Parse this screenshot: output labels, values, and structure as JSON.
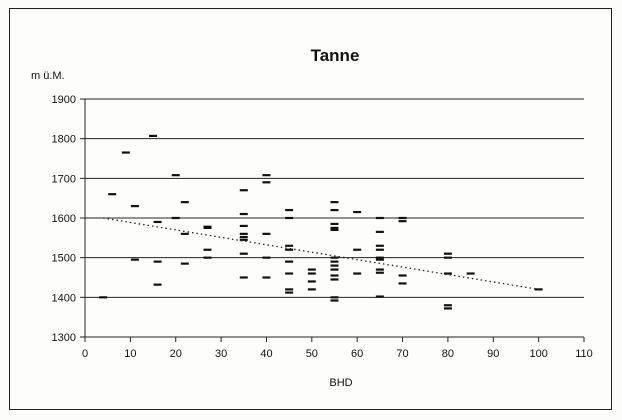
{
  "chart_data": {
    "type": "scatter",
    "title": "Tanne",
    "ylabel": "m ü.M.",
    "xlabel": "BHD",
    "xlim": [
      0,
      110
    ],
    "ylim": [
      1300,
      1900
    ],
    "xticks": [
      "0",
      "10",
      "20",
      "30",
      "40",
      "50",
      "60",
      "70",
      "80",
      "90",
      "100",
      "110"
    ],
    "yticks": [
      "1300",
      "1400",
      "1500",
      "1600",
      "1700",
      "1800",
      "1900"
    ],
    "grid": "horizontal",
    "marker": "dash",
    "points": [
      [
        4,
        1400
      ],
      [
        6,
        1660
      ],
      [
        9,
        1765
      ],
      [
        11,
        1630
      ],
      [
        11,
        1495
      ],
      [
        15,
        1807
      ],
      [
        16,
        1590
      ],
      [
        16,
        1490
      ],
      [
        16,
        1432
      ],
      [
        20,
        1708
      ],
      [
        20,
        1600
      ],
      [
        22,
        1640
      ],
      [
        22,
        1560
      ],
      [
        22,
        1485
      ],
      [
        27,
        1578
      ],
      [
        27,
        1575
      ],
      [
        27,
        1520
      ],
      [
        27,
        1500
      ],
      [
        35,
        1670
      ],
      [
        35,
        1610
      ],
      [
        35,
        1580
      ],
      [
        35,
        1560
      ],
      [
        35,
        1552
      ],
      [
        35,
        1545
      ],
      [
        35,
        1510
      ],
      [
        35,
        1450
      ],
      [
        40,
        1708
      ],
      [
        40,
        1690
      ],
      [
        40,
        1560
      ],
      [
        40,
        1500
      ],
      [
        40,
        1450
      ],
      [
        45,
        1620
      ],
      [
        45,
        1600
      ],
      [
        45,
        1530
      ],
      [
        45,
        1520
      ],
      [
        45,
        1490
      ],
      [
        45,
        1460
      ],
      [
        45,
        1420
      ],
      [
        45,
        1412
      ],
      [
        50,
        1470
      ],
      [
        50,
        1460
      ],
      [
        50,
        1440
      ],
      [
        50,
        1420
      ],
      [
        55,
        1640
      ],
      [
        55,
        1620
      ],
      [
        55,
        1585
      ],
      [
        55,
        1575
      ],
      [
        55,
        1570
      ],
      [
        55,
        1500
      ],
      [
        55,
        1490
      ],
      [
        55,
        1480
      ],
      [
        55,
        1470
      ],
      [
        55,
        1455
      ],
      [
        55,
        1445
      ],
      [
        55,
        1400
      ],
      [
        55,
        1392
      ],
      [
        60,
        1615
      ],
      [
        60,
        1520
      ],
      [
        60,
        1460
      ],
      [
        65,
        1600
      ],
      [
        65,
        1565
      ],
      [
        65,
        1530
      ],
      [
        65,
        1520
      ],
      [
        65,
        1500
      ],
      [
        65,
        1495
      ],
      [
        65,
        1470
      ],
      [
        65,
        1462
      ],
      [
        65,
        1402
      ],
      [
        70,
        1600
      ],
      [
        70,
        1592
      ],
      [
        70,
        1455
      ],
      [
        70,
        1435
      ],
      [
        80,
        1510
      ],
      [
        80,
        1500
      ],
      [
        80,
        1460
      ],
      [
        80,
        1380
      ],
      [
        80,
        1372
      ],
      [
        85,
        1460
      ],
      [
        100,
        1420
      ]
    ],
    "trendline": {
      "style": "dotted",
      "x": [
        4,
        100
      ],
      "y": [
        1600,
        1420
      ]
    }
  }
}
